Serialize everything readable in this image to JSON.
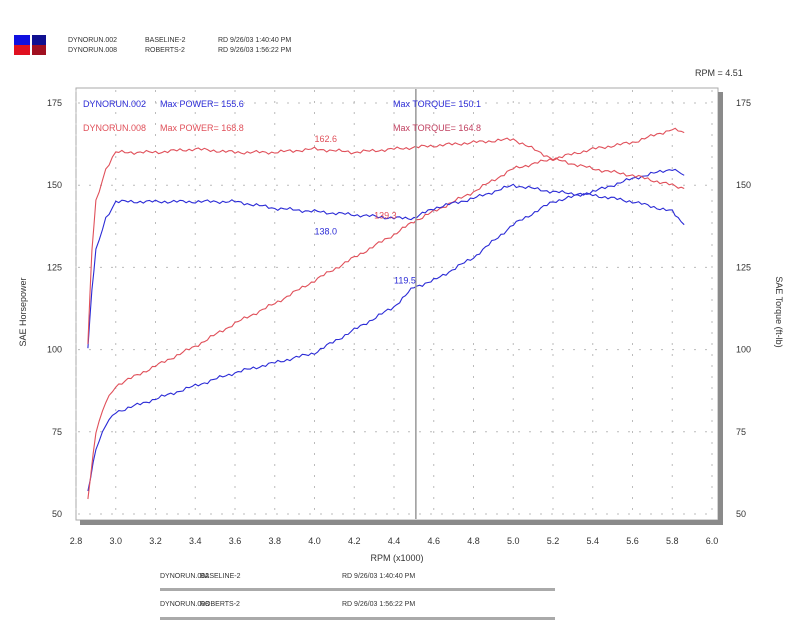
{
  "header": {
    "runs": [
      {
        "file": "DYNORUN.002",
        "name": "BASELINE-2",
        "info": "RD 9/26/03 1:40:40 PM"
      },
      {
        "file": "DYNORUN.008",
        "name": "ROBERTS-2",
        "info": "RD 9/26/03 1:56:22 PM"
      }
    ],
    "cursor_readout": "RPM = 4.51"
  },
  "colors": {
    "run1": "#2b2bd6",
    "run2": "#e0505a",
    "frame": "#888888"
  },
  "chart_data": {
    "type": "line",
    "xlabel": "RPM (x1000)",
    "ylabel_left": "SAE Horsepower",
    "ylabel_right": "SAE Torque (ft-lb)",
    "xlim": [
      2.8,
      6.0
    ],
    "ylim": [
      50,
      175
    ],
    "x_ticks": [
      "2.8",
      "3.0",
      "3.2",
      "3.4",
      "3.6",
      "3.8",
      "4.0",
      "4.2",
      "4.4",
      "4.6",
      "4.8",
      "5.0",
      "5.2",
      "5.4",
      "5.6",
      "5.8",
      "6.0"
    ],
    "y_ticks": [
      "50",
      "75",
      "100",
      "125",
      "150",
      "175"
    ],
    "grid": true,
    "cursor_rpm": 4.51,
    "legend": [
      {
        "run": "DYNORUN.002",
        "power": "Max POWER= 155.6",
        "torque": "Max TORQUE= 150.1"
      },
      {
        "run": "DYNORUN.008",
        "power": "Max POWER= 168.8",
        "torque": "Max TORQUE= 164.8"
      }
    ],
    "cursor_labels": [
      {
        "text": "162.6",
        "rpm": 4.0,
        "value": 162.6,
        "series": "run2-torque"
      },
      {
        "text": "139.3",
        "rpm": 4.3,
        "value": 139.3,
        "series": "run2-power"
      },
      {
        "text": "138.0",
        "rpm": 4.0,
        "value": 138.0,
        "series": "run1-torque"
      },
      {
        "text": "119.5",
        "rpm": 4.4,
        "value": 119.5,
        "series": "run1-power"
      }
    ],
    "series": [
      {
        "id": "run1-power",
        "run": "DYNORUN.002",
        "axis": "left",
        "points": [
          [
            2.86,
            57
          ],
          [
            2.9,
            70
          ],
          [
            2.95,
            77
          ],
          [
            3.0,
            81
          ],
          [
            3.2,
            85
          ],
          [
            3.4,
            89
          ],
          [
            3.6,
            93
          ],
          [
            3.8,
            96
          ],
          [
            4.0,
            99
          ],
          [
            4.2,
            106
          ],
          [
            4.4,
            113
          ],
          [
            4.5,
            119
          ],
          [
            4.6,
            121
          ],
          [
            4.8,
            128
          ],
          [
            5.0,
            138
          ],
          [
            5.2,
            145
          ],
          [
            5.4,
            148
          ],
          [
            5.6,
            152
          ],
          [
            5.8,
            155
          ],
          [
            5.86,
            153
          ]
        ]
      },
      {
        "id": "run2-power",
        "run": "DYNORUN.008",
        "axis": "left",
        "points": [
          [
            2.86,
            55
          ],
          [
            2.9,
            75
          ],
          [
            2.95,
            84
          ],
          [
            3.0,
            89
          ],
          [
            3.2,
            95
          ],
          [
            3.4,
            101
          ],
          [
            3.6,
            108
          ],
          [
            3.8,
            114
          ],
          [
            4.0,
            121
          ],
          [
            4.2,
            128
          ],
          [
            4.4,
            135
          ],
          [
            4.5,
            139
          ],
          [
            4.6,
            142
          ],
          [
            4.8,
            148
          ],
          [
            5.0,
            155
          ],
          [
            5.2,
            158
          ],
          [
            5.4,
            161
          ],
          [
            5.6,
            163
          ],
          [
            5.8,
            167
          ],
          [
            5.86,
            166
          ]
        ]
      },
      {
        "id": "run1-torque",
        "run": "DYNORUN.002",
        "axis": "right",
        "points": [
          [
            2.86,
            101
          ],
          [
            2.88,
            118
          ],
          [
            2.9,
            130
          ],
          [
            2.95,
            140
          ],
          [
            3.0,
            145
          ],
          [
            3.2,
            145
          ],
          [
            3.4,
            145
          ],
          [
            3.6,
            145
          ],
          [
            3.8,
            143
          ],
          [
            4.0,
            142
          ],
          [
            4.2,
            141
          ],
          [
            4.4,
            140
          ],
          [
            4.5,
            140
          ],
          [
            4.6,
            143
          ],
          [
            4.8,
            146
          ],
          [
            5.0,
            150
          ],
          [
            5.2,
            148
          ],
          [
            5.4,
            147
          ],
          [
            5.6,
            145
          ],
          [
            5.8,
            142
          ],
          [
            5.86,
            138
          ]
        ]
      },
      {
        "id": "run2-torque",
        "run": "DYNORUN.008",
        "axis": "right",
        "points": [
          [
            2.86,
            102
          ],
          [
            2.88,
            130
          ],
          [
            2.9,
            145
          ],
          [
            2.95,
            155
          ],
          [
            3.0,
            160
          ],
          [
            3.2,
            160
          ],
          [
            3.4,
            161
          ],
          [
            3.6,
            160
          ],
          [
            3.8,
            160
          ],
          [
            4.0,
            161
          ],
          [
            4.2,
            160
          ],
          [
            4.4,
            161
          ],
          [
            4.6,
            162
          ],
          [
            4.8,
            163
          ],
          [
            5.0,
            164
          ],
          [
            5.2,
            158
          ],
          [
            5.4,
            155
          ],
          [
            5.6,
            153
          ],
          [
            5.8,
            150
          ],
          [
            5.86,
            149
          ]
        ]
      }
    ]
  }
}
